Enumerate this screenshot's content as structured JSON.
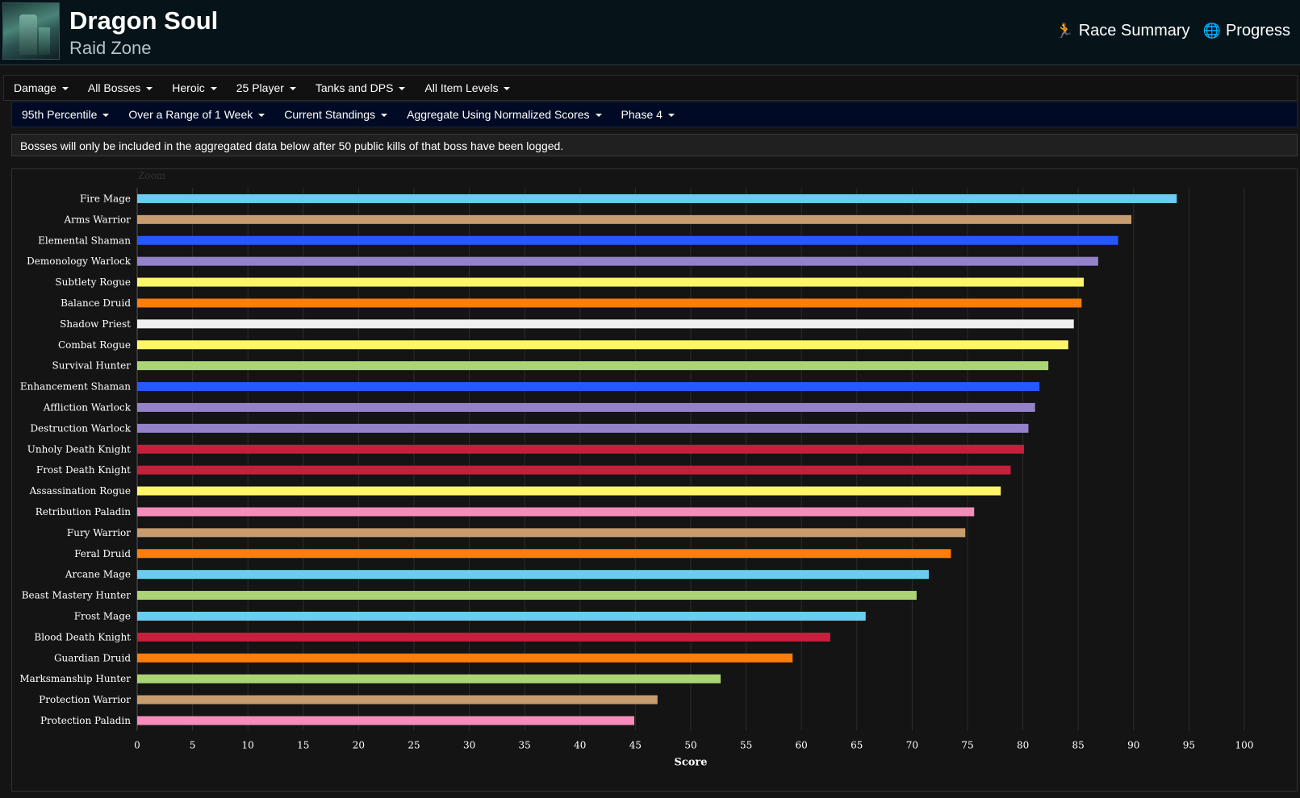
{
  "header": {
    "title": "Dragon Soul",
    "subtitle": "Raid Zone",
    "nav": [
      {
        "label": "Race Summary",
        "icon": "runner-icon",
        "glyph": "🏃"
      },
      {
        "label": "Progress",
        "icon": "globe-icon",
        "glyph": "🌐"
      }
    ]
  },
  "filters_row1": [
    "Damage",
    "All Bosses",
    "Heroic",
    "25 Player",
    "Tanks and DPS",
    "All Item Levels"
  ],
  "filters_row2": [
    "95th Percentile",
    "Over a Range of 1 Week",
    "Current Standings",
    "Aggregate Using Normalized Scores",
    "Phase 4"
  ],
  "notice": "Bosses will only be included in the aggregated data below after 50 public kills of that boss have been logged.",
  "chart_zoom_label": "Zoom",
  "chart_data": {
    "type": "bar",
    "orientation": "horizontal",
    "xlabel": "Score",
    "xlim": [
      0,
      100
    ],
    "xticks": [
      0,
      5,
      10,
      15,
      20,
      25,
      30,
      35,
      40,
      45,
      50,
      55,
      60,
      65,
      70,
      75,
      80,
      85,
      90,
      95,
      100
    ],
    "grid": true,
    "categories": [
      "Fire Mage",
      "Arms Warrior",
      "Elemental Shaman",
      "Demonology Warlock",
      "Subtlety Rogue",
      "Balance Druid",
      "Shadow Priest",
      "Combat Rogue",
      "Survival Hunter",
      "Enhancement Shaman",
      "Affliction Warlock",
      "Destruction Warlock",
      "Unholy Death Knight",
      "Frost Death Knight",
      "Assassination Rogue",
      "Retribution Paladin",
      "Fury Warrior",
      "Feral Druid",
      "Arcane Mage",
      "Beast Mastery Hunter",
      "Frost Mage",
      "Blood Death Knight",
      "Guardian Druid",
      "Marksmanship Hunter",
      "Protection Warrior",
      "Protection Paladin"
    ],
    "values": [
      93.9,
      89.8,
      88.6,
      86.8,
      85.5,
      85.3,
      84.6,
      84.1,
      82.3,
      81.5,
      81.1,
      80.5,
      80.1,
      78.9,
      78.0,
      75.6,
      74.8,
      73.5,
      71.5,
      70.4,
      65.8,
      62.6,
      59.2,
      52.7,
      47.0,
      44.9
    ],
    "colors": [
      "#69ccf0",
      "#c79c6e",
      "#2459ff",
      "#9482c9",
      "#fff569",
      "#ff7d0a",
      "#f0f0f0",
      "#fff569",
      "#abd473",
      "#2459ff",
      "#9482c9",
      "#9482c9",
      "#c41f3b",
      "#c41f3b",
      "#fff569",
      "#f58cba",
      "#c79c6e",
      "#ff7d0a",
      "#69ccf0",
      "#abd473",
      "#69ccf0",
      "#c41f3b",
      "#ff7d0a",
      "#abd473",
      "#c79c6e",
      "#f58cba"
    ]
  }
}
